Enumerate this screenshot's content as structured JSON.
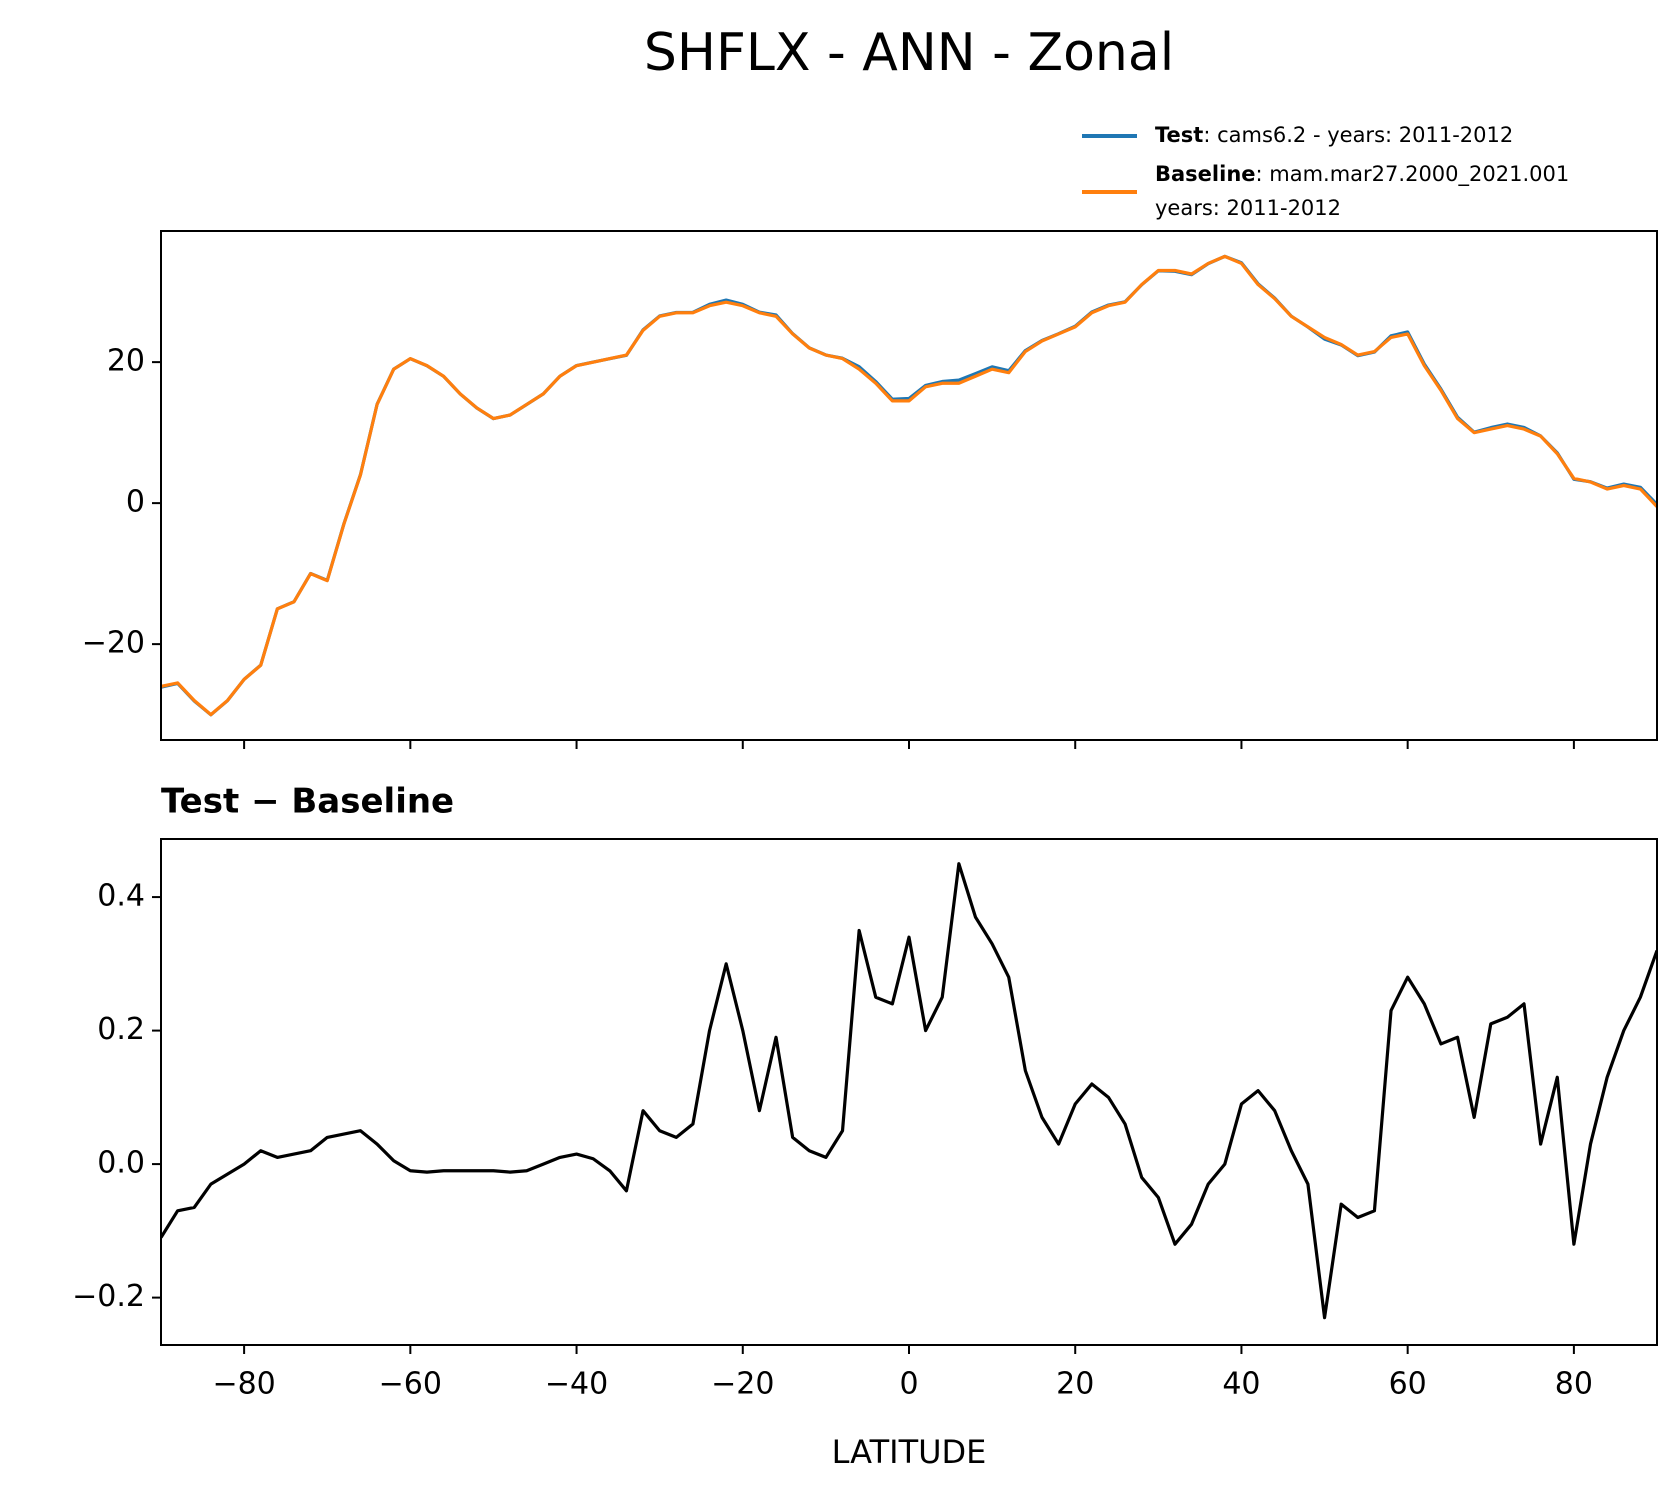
{
  "title": "SHFLX - ANN - Zonal",
  "chart_data": [
    {
      "type": "line",
      "x": [
        -90,
        -88,
        -86,
        -84,
        -82,
        -80,
        -78,
        -76,
        -74,
        -72,
        -70,
        -68,
        -66,
        -64,
        -62,
        -60,
        -58,
        -56,
        -54,
        -52,
        -50,
        -48,
        -46,
        -44,
        -42,
        -40,
        -38,
        -36,
        -34,
        -32,
        -30,
        -28,
        -26,
        -24,
        -22,
        -20,
        -18,
        -16,
        -14,
        -12,
        -10,
        -8,
        -6,
        -4,
        -2,
        0,
        2,
        4,
        6,
        8,
        10,
        12,
        14,
        16,
        18,
        20,
        22,
        24,
        26,
        28,
        30,
        32,
        34,
        36,
        38,
        40,
        42,
        44,
        46,
        48,
        50,
        52,
        54,
        56,
        58,
        60,
        62,
        64,
        66,
        68,
        70,
        72,
        74,
        76,
        78,
        80,
        82,
        84,
        86,
        88,
        90
      ],
      "series": [
        {
          "name": "Test",
          "description": [
            ": cams6.2 - years: 2011-2012"
          ],
          "color": "#1f77b4",
          "values": [
            -26.11,
            -25.57,
            -28.07,
            -30.03,
            -28.02,
            -25,
            -22.98,
            -14.99,
            -13.99,
            -9.98,
            -10.96,
            -2.96,
            4.05,
            14.03,
            19.01,
            20.49,
            19.49,
            17.99,
            15.49,
            13.49,
            11.99,
            12.49,
            13.99,
            15.5,
            18.01,
            19.52,
            20.01,
            20.49,
            20.96,
            24.58,
            26.55,
            27.04,
            27.06,
            28.2,
            28.8,
            28.2,
            27.08,
            26.69,
            24.04,
            22.02,
            21.01,
            20.55,
            19.35,
            17.25,
            14.74,
            14.84,
            16.7,
            17.25,
            17.45,
            18.37,
            19.33,
            18.78,
            21.64,
            23.07,
            24.03,
            25.09,
            27.12,
            28.1,
            28.56,
            30.98,
            32.95,
            32.88,
            32.41,
            33.97,
            35,
            34.09,
            31.11,
            29.08,
            26.52,
            24.97,
            23.27,
            22.44,
            20.92,
            21.43,
            23.73,
            24.28,
            19.74,
            16.18,
            12.19,
            10.07,
            10.71,
            11.22,
            10.74,
            9.53,
            7.13,
            3.38,
            3.03,
            2.13,
            2.7,
            2.25,
            -0.18
          ]
        },
        {
          "name": "Baseline",
          "description": [
            ": mam.mar27.2000_2021.001",
            "years: 2011-2012"
          ],
          "color": "#ff7f0e",
          "values": [
            -26,
            -25.5,
            -28,
            -30,
            -28,
            -25,
            -23,
            -15,
            -14,
            -10,
            -11,
            -3,
            4,
            14,
            19,
            20.5,
            19.5,
            18,
            15.5,
            13.5,
            12,
            12.5,
            14,
            15.5,
            18,
            19.5,
            20,
            20.5,
            21,
            24.5,
            26.5,
            27,
            27,
            28,
            28.5,
            28,
            27,
            26.5,
            24,
            22,
            21,
            20.5,
            19,
            17,
            14.5,
            14.5,
            16.5,
            17,
            17,
            18,
            19,
            18.5,
            21.5,
            23,
            24,
            25,
            27,
            28,
            28.5,
            31,
            33,
            33,
            32.5,
            34,
            35,
            34,
            31,
            29,
            26.5,
            25,
            23.5,
            22.5,
            21,
            21.5,
            23.5,
            24,
            19.5,
            16,
            12,
            10,
            10.5,
            11,
            10.5,
            9.5,
            7,
            3.5,
            3,
            2,
            2.5,
            2,
            -0.5
          ]
        }
      ],
      "xlim": [
        -90,
        90
      ],
      "xticks": [
        -80,
        -60,
        -40,
        -20,
        0,
        20,
        40,
        60,
        80
      ],
      "ylim": [
        -33.6,
        38.6
      ],
      "yticks": [
        {
          "value": -20,
          "label": "−20"
        },
        0,
        20
      ]
    },
    {
      "type": "line",
      "title": "Test − Baseline",
      "xlabel": "LATITUDE",
      "x": [
        -90,
        -88,
        -86,
        -84,
        -82,
        -80,
        -78,
        -76,
        -74,
        -72,
        -70,
        -68,
        -66,
        -64,
        -62,
        -60,
        -58,
        -56,
        -54,
        -52,
        -50,
        -48,
        -46,
        -44,
        -42,
        -40,
        -38,
        -36,
        -34,
        -32,
        -30,
        -28,
        -26,
        -24,
        -22,
        -20,
        -18,
        -16,
        -14,
        -12,
        -10,
        -8,
        -6,
        -4,
        -2,
        0,
        2,
        4,
        6,
        8,
        10,
        12,
        14,
        16,
        18,
        20,
        22,
        24,
        26,
        28,
        30,
        32,
        34,
        36,
        38,
        40,
        42,
        44,
        46,
        48,
        50,
        52,
        54,
        56,
        58,
        60,
        62,
        64,
        66,
        68,
        70,
        72,
        74,
        76,
        78,
        80,
        82,
        84,
        86,
        88,
        90
      ],
      "series": [
        {
          "color": "#000000",
          "values": [
            -0.11,
            -0.07,
            -0.065,
            -0.03,
            -0.015,
            0,
            0.02,
            0.01,
            0.015,
            0.02,
            0.04,
            0.045,
            0.05,
            0.03,
            0.005,
            -0.01,
            -0.012,
            -0.01,
            -0.01,
            -0.01,
            -0.01,
            -0.012,
            -0.01,
            0,
            0.01,
            0.015,
            0.008,
            -0.01,
            -0.04,
            0.08,
            0.05,
            0.04,
            0.06,
            0.2,
            0.3,
            0.2,
            0.08,
            0.19,
            0.04,
            0.02,
            0.01,
            0.05,
            0.35,
            0.25,
            0.24,
            0.34,
            0.2,
            0.25,
            0.45,
            0.37,
            0.33,
            0.28,
            0.14,
            0.07,
            0.03,
            0.09,
            0.12,
            0.1,
            0.06,
            -0.02,
            -0.05,
            -0.12,
            -0.09,
            -0.03,
            0,
            0.09,
            0.11,
            0.08,
            0.02,
            -0.03,
            -0.23,
            -0.06,
            -0.08,
            -0.07,
            0.23,
            0.28,
            0.24,
            0.18,
            0.19,
            0.07,
            0.21,
            0.22,
            0.24,
            0.03,
            0.13,
            -0.12,
            0.03,
            0.13,
            0.2,
            0.25,
            0.32
          ]
        }
      ],
      "xlim": [
        -90,
        90
      ],
      "xticks": [
        {
          "value": -80,
          "label": "−80"
        },
        {
          "value": -60,
          "label": "−60"
        },
        {
          "value": -40,
          "label": "−40"
        },
        {
          "value": -20,
          "label": "−20"
        },
        0,
        20,
        40,
        60,
        80
      ],
      "ylim": [
        -0.271,
        0.487
      ],
      "yticks": [
        {
          "value": -0.2,
          "label": "−0.2"
        },
        {
          "value": 0,
          "label": "0.0"
        },
        0.2,
        0.4
      ]
    }
  ]
}
